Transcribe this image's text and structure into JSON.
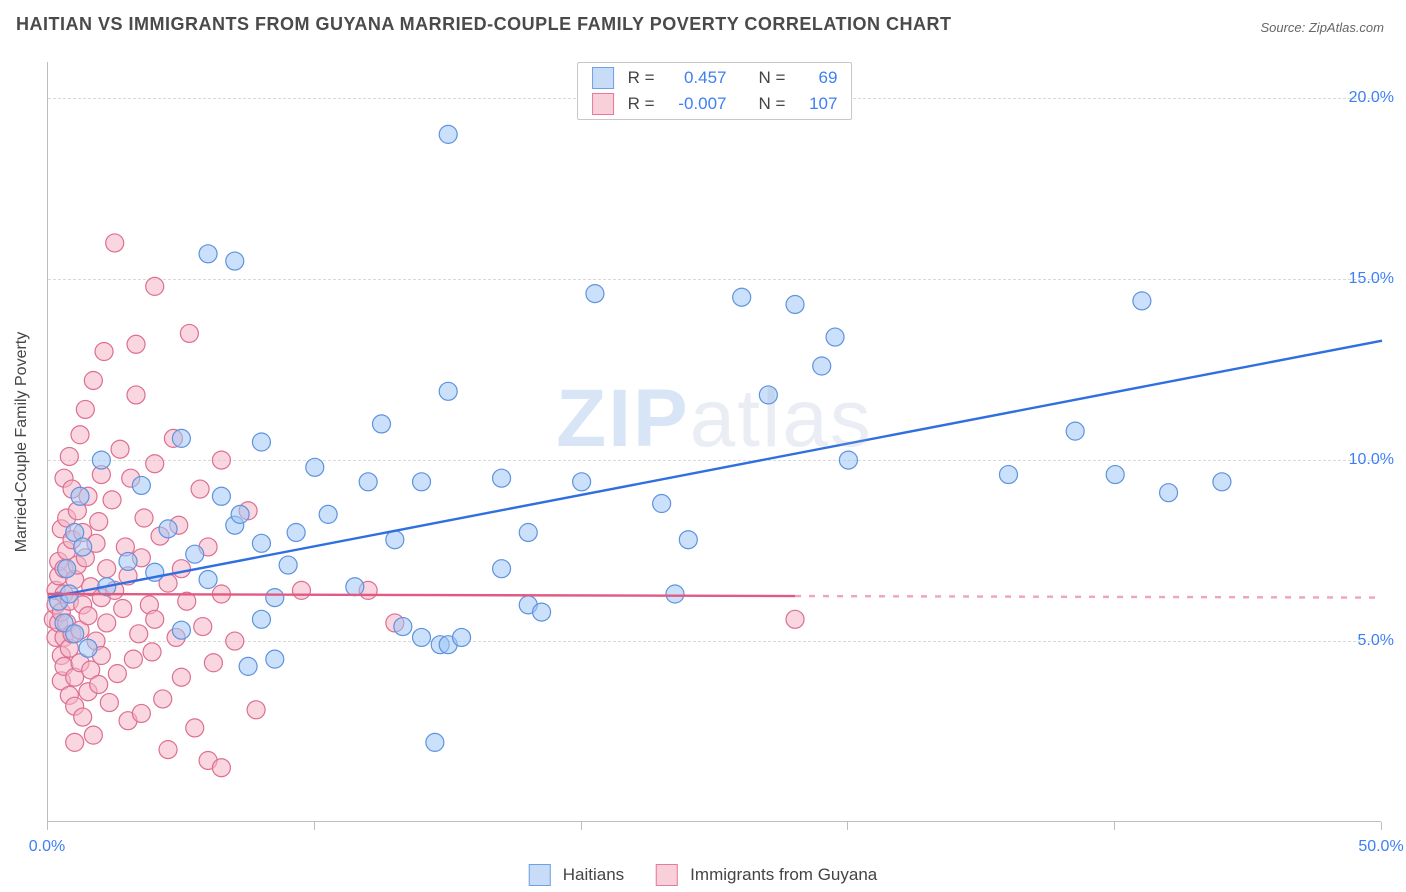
{
  "title": "HAITIAN VS IMMIGRANTS FROM GUYANA MARRIED-COUPLE FAMILY POVERTY CORRELATION CHART",
  "source_label": "Source: ",
  "source_name": "ZipAtlas.com",
  "watermark_a": "ZIP",
  "watermark_b": "atlas",
  "y_axis_title": "Married-Couple Family Poverty",
  "chart": {
    "type": "scatter",
    "background_color": "#ffffff",
    "grid_color": "#d9d9d9",
    "axis_color": "#bdbdbd",
    "text_color": "#444444",
    "value_color": "#3d7ff5",
    "marker_radius": 9,
    "marker_stroke_width": 1.2,
    "line_width": 2.4,
    "xlim": [
      0,
      50
    ],
    "ylim": [
      0,
      21
    ],
    "x_ticks": [
      0,
      10,
      20,
      30,
      40,
      50
    ],
    "x_tick_labels": [
      "0.0%",
      "",
      "",
      "",
      "",
      "50.0%"
    ],
    "y_ticks": [
      5,
      10,
      15,
      20
    ],
    "y_tick_labels": [
      "5.0%",
      "10.0%",
      "15.0%",
      "20.0%"
    ],
    "y_gridlines": [
      5,
      10,
      15,
      20
    ],
    "stats": [
      {
        "swatch_fill": "#c9dcf7",
        "swatch_stroke": "#6fa1e8",
        "r_label": "R =",
        "r_value": "0.457",
        "n_label": "N =",
        "n_value": "69"
      },
      {
        "swatch_fill": "#f7d0da",
        "swatch_stroke": "#e77a9a",
        "r_label": "R =",
        "r_value": "-0.007",
        "n_label": "N =",
        "n_value": "107"
      }
    ],
    "series_legend": [
      {
        "swatch_fill": "#c9dcf7",
        "swatch_stroke": "#6fa1e8",
        "label": "Haitians"
      },
      {
        "swatch_fill": "#f7d0da",
        "swatch_stroke": "#e77a9a",
        "label": "Immigrants from Guyana"
      }
    ],
    "series": [
      {
        "name": "Haitians",
        "marker_fill": "rgba(160,198,245,0.55)",
        "marker_stroke": "#5e93dd",
        "trend_color": "#2f6fe0",
        "trend": {
          "x1": 0,
          "y1": 6.2,
          "x2": 50,
          "y2": 13.3,
          "solid_to_x": 50
        },
        "points": [
          [
            0.4,
            6.1
          ],
          [
            0.6,
            5.5
          ],
          [
            0.7,
            7.0
          ],
          [
            0.8,
            6.3
          ],
          [
            1.0,
            8.0
          ],
          [
            1.0,
            5.2
          ],
          [
            1.2,
            9.0
          ],
          [
            1.3,
            7.6
          ],
          [
            1.5,
            4.8
          ],
          [
            2.0,
            10.0
          ],
          [
            2.2,
            6.5
          ],
          [
            3.0,
            7.2
          ],
          [
            3.5,
            9.3
          ],
          [
            4.0,
            6.9
          ],
          [
            4.5,
            8.1
          ],
          [
            5.0,
            10.6
          ],
          [
            5.0,
            5.3
          ],
          [
            5.5,
            7.4
          ],
          [
            6.0,
            15.7
          ],
          [
            6.0,
            6.7
          ],
          [
            6.5,
            9.0
          ],
          [
            7.0,
            8.2
          ],
          [
            7.0,
            15.5
          ],
          [
            7.2,
            8.5
          ],
          [
            7.5,
            4.3
          ],
          [
            8.0,
            10.5
          ],
          [
            8.0,
            5.6
          ],
          [
            8.0,
            7.7
          ],
          [
            8.5,
            6.2
          ],
          [
            8.5,
            4.5
          ],
          [
            9.0,
            7.1
          ],
          [
            9.3,
            8.0
          ],
          [
            10.0,
            9.8
          ],
          [
            10.5,
            8.5
          ],
          [
            11.5,
            6.5
          ],
          [
            12.0,
            9.4
          ],
          [
            12.5,
            11.0
          ],
          [
            13.0,
            7.8
          ],
          [
            13.3,
            5.4
          ],
          [
            14.0,
            5.1
          ],
          [
            14.0,
            9.4
          ],
          [
            14.7,
            4.9
          ],
          [
            14.5,
            2.2
          ],
          [
            15.0,
            11.9
          ],
          [
            15.0,
            19.0
          ],
          [
            15.0,
            4.9
          ],
          [
            15.5,
            5.1
          ],
          [
            17.0,
            9.5
          ],
          [
            17.0,
            7.0
          ],
          [
            18.0,
            6.0
          ],
          [
            18.0,
            8.0
          ],
          [
            18.5,
            5.8
          ],
          [
            20.0,
            9.4
          ],
          [
            20.5,
            14.6
          ],
          [
            23.0,
            8.8
          ],
          [
            23.5,
            6.3
          ],
          [
            24.0,
            7.8
          ],
          [
            26.0,
            14.5
          ],
          [
            27.0,
            11.8
          ],
          [
            28.0,
            14.3
          ],
          [
            29.0,
            12.6
          ],
          [
            29.5,
            13.4
          ],
          [
            30.0,
            10.0
          ],
          [
            36.0,
            9.6
          ],
          [
            38.5,
            10.8
          ],
          [
            40.0,
            9.6
          ],
          [
            41.0,
            14.4
          ],
          [
            42.0,
            9.1
          ],
          [
            44.0,
            9.4
          ]
        ]
      },
      {
        "name": "Immigrants from Guyana",
        "marker_fill": "rgba(244,180,198,0.55)",
        "marker_stroke": "#dd6f90",
        "trend_color": "#e05a84",
        "trend": {
          "x1": 0,
          "y1": 6.3,
          "x2": 50,
          "y2": 6.2,
          "solid_to_x": 28
        },
        "points": [
          [
            0.2,
            5.6
          ],
          [
            0.3,
            6.0
          ],
          [
            0.3,
            6.4
          ],
          [
            0.3,
            5.1
          ],
          [
            0.4,
            6.8
          ],
          [
            0.4,
            5.5
          ],
          [
            0.4,
            7.2
          ],
          [
            0.5,
            4.6
          ],
          [
            0.5,
            8.1
          ],
          [
            0.5,
            3.9
          ],
          [
            0.5,
            5.8
          ],
          [
            0.6,
            6.3
          ],
          [
            0.6,
            7.0
          ],
          [
            0.6,
            4.3
          ],
          [
            0.6,
            5.1
          ],
          [
            0.6,
            9.5
          ],
          [
            0.7,
            8.4
          ],
          [
            0.7,
            5.5
          ],
          [
            0.7,
            7.5
          ],
          [
            0.8,
            10.1
          ],
          [
            0.8,
            3.5
          ],
          [
            0.8,
            6.1
          ],
          [
            0.8,
            4.8
          ],
          [
            0.9,
            5.2
          ],
          [
            0.9,
            7.8
          ],
          [
            0.9,
            9.2
          ],
          [
            1.0,
            4.0
          ],
          [
            1.0,
            6.7
          ],
          [
            1.0,
            3.2
          ],
          [
            1.0,
            2.2
          ],
          [
            1.1,
            7.1
          ],
          [
            1.1,
            8.6
          ],
          [
            1.2,
            5.3
          ],
          [
            1.2,
            4.4
          ],
          [
            1.2,
            10.7
          ],
          [
            1.3,
            2.9
          ],
          [
            1.3,
            6.0
          ],
          [
            1.3,
            8.0
          ],
          [
            1.4,
            7.3
          ],
          [
            1.4,
            11.4
          ],
          [
            1.5,
            3.6
          ],
          [
            1.5,
            5.7
          ],
          [
            1.5,
            9.0
          ],
          [
            1.6,
            4.2
          ],
          [
            1.6,
            6.5
          ],
          [
            1.7,
            12.2
          ],
          [
            1.7,
            2.4
          ],
          [
            1.8,
            7.7
          ],
          [
            1.8,
            5.0
          ],
          [
            1.9,
            8.3
          ],
          [
            1.9,
            3.8
          ],
          [
            2.0,
            6.2
          ],
          [
            2.0,
            4.6
          ],
          [
            2.0,
            9.6
          ],
          [
            2.1,
            13.0
          ],
          [
            2.2,
            5.5
          ],
          [
            2.2,
            7.0
          ],
          [
            2.3,
            3.3
          ],
          [
            2.4,
            8.9
          ],
          [
            2.5,
            6.4
          ],
          [
            2.5,
            16.0
          ],
          [
            2.6,
            4.1
          ],
          [
            2.7,
            10.3
          ],
          [
            2.8,
            5.9
          ],
          [
            2.9,
            7.6
          ],
          [
            3.0,
            2.8
          ],
          [
            3.0,
            6.8
          ],
          [
            3.1,
            9.5
          ],
          [
            3.2,
            4.5
          ],
          [
            3.3,
            11.8
          ],
          [
            3.3,
            13.2
          ],
          [
            3.4,
            5.2
          ],
          [
            3.5,
            7.3
          ],
          [
            3.5,
            3.0
          ],
          [
            3.6,
            8.4
          ],
          [
            3.8,
            6.0
          ],
          [
            3.9,
            4.7
          ],
          [
            4.0,
            9.9
          ],
          [
            4.0,
            5.6
          ],
          [
            4.0,
            14.8
          ],
          [
            4.2,
            7.9
          ],
          [
            4.3,
            3.4
          ],
          [
            4.5,
            6.6
          ],
          [
            4.5,
            2.0
          ],
          [
            4.7,
            10.6
          ],
          [
            4.8,
            5.1
          ],
          [
            4.9,
            8.2
          ],
          [
            5.0,
            4.0
          ],
          [
            5.0,
            7.0
          ],
          [
            5.2,
            6.1
          ],
          [
            5.3,
            13.5
          ],
          [
            5.5,
            2.6
          ],
          [
            5.7,
            9.2
          ],
          [
            5.8,
            5.4
          ],
          [
            6.0,
            7.6
          ],
          [
            6.0,
            1.7
          ],
          [
            6.2,
            4.4
          ],
          [
            6.5,
            10.0
          ],
          [
            6.5,
            6.3
          ],
          [
            6.5,
            1.5
          ],
          [
            7.0,
            5.0
          ],
          [
            7.5,
            8.6
          ],
          [
            7.8,
            3.1
          ],
          [
            9.5,
            6.4
          ],
          [
            12.0,
            6.4
          ],
          [
            13.0,
            5.5
          ],
          [
            28.0,
            5.6
          ]
        ]
      }
    ]
  }
}
